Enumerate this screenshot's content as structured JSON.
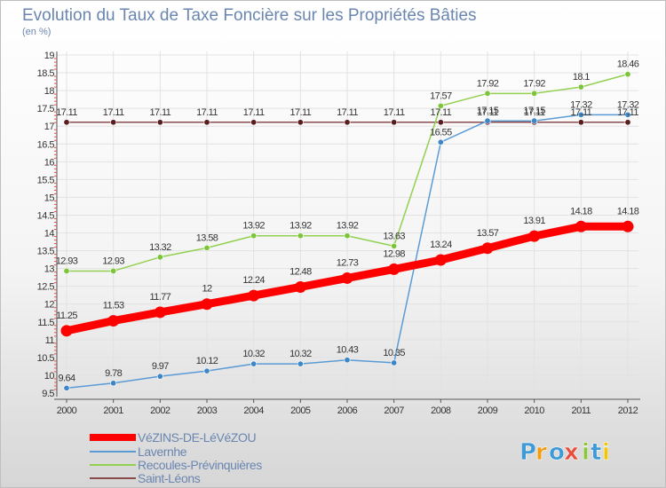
{
  "chart_data": {
    "type": "line",
    "title": "Evolution du Taux de Taxe Foncière sur les Propriétés Bâties",
    "subtitle": "(en %)",
    "x": [
      "2000",
      "2001",
      "2002",
      "2003",
      "2004",
      "2005",
      "2006",
      "2007",
      "2008",
      "2009",
      "2010",
      "2011",
      "2012"
    ],
    "yticks": [
      "9.5",
      "10",
      "10.5",
      "11",
      "11.5",
      "12",
      "12.5",
      "13",
      "13.5",
      "14",
      "14.5",
      "15",
      "15.5",
      "16",
      "16.5",
      "17",
      "17.5",
      "18",
      "18.5",
      "19"
    ],
    "ylim": [
      9.5,
      19
    ],
    "series": [
      {
        "name": "VéZINS-DE-LéVéZOU",
        "color": "#ff0000",
        "values": [
          11.25,
          11.53,
          11.77,
          12,
          12.24,
          12.48,
          12.73,
          12.98,
          13.24,
          13.57,
          13.91,
          14.18,
          14.18
        ],
        "labels": [
          "11.25",
          "11.53",
          "11.77",
          "12",
          "12.24",
          "12.48",
          "12.73",
          "12.98",
          "13.24",
          "13.57",
          "13.91",
          "14.18",
          "14.18"
        ]
      },
      {
        "name": "Lavernhe",
        "color": "#5b9bd5",
        "values": [
          9.64,
          9.78,
          9.97,
          10.12,
          10.32,
          10.32,
          10.43,
          10.35,
          16.55,
          17.15,
          17.15,
          17.32,
          17.32
        ],
        "labels": [
          "9.64",
          "9.78",
          "9.97",
          "10.12",
          "10.32",
          "10.32",
          "10.43",
          "10.35",
          "16.55",
          "17.15",
          "17.15",
          "17.32",
          "17.32"
        ]
      },
      {
        "name": "Recoules-Prévinquières",
        "color": "#92d050",
        "values": [
          12.93,
          12.93,
          13.32,
          13.58,
          13.92,
          13.92,
          13.92,
          13.63,
          17.57,
          17.92,
          17.92,
          18.1,
          18.46
        ],
        "labels": [
          "12.93",
          "12.93",
          "13.32",
          "13.58",
          "13.92",
          "13.92",
          "13.92",
          "13.63",
          "17.57",
          "17.92",
          "17.92",
          "18.1",
          "18.46"
        ]
      },
      {
        "name": "Saint-Léons",
        "color": "#8b4a4a",
        "values": [
          17.11,
          17.11,
          17.11,
          17.11,
          17.11,
          17.11,
          17.11,
          17.11,
          17.11,
          17.11,
          17.11,
          17.11,
          17.11
        ],
        "labels": [
          "17.11",
          "17.11",
          "17.11",
          "17.11",
          "17.11",
          "17.11",
          "17.11",
          "17.11",
          "17.11",
          "17.11",
          "17.11",
          "17.11",
          "17.11"
        ]
      }
    ],
    "legend": [
      "VéZINS-DE-LéVéZOU",
      "Lavernhe",
      "Recoules-Prévinquières",
      "Saint-Léons"
    ],
    "legend_position": "bottom-left"
  },
  "brand": {
    "letters": [
      "P",
      "r",
      "o",
      "x",
      "i",
      "t",
      "i"
    ],
    "colors": [
      "#3f9ad6",
      "#f39c12",
      "#3f9ad6",
      "#e74c3c",
      "#8cc63f",
      "#3f9ad6",
      "#f1c40f"
    ]
  }
}
